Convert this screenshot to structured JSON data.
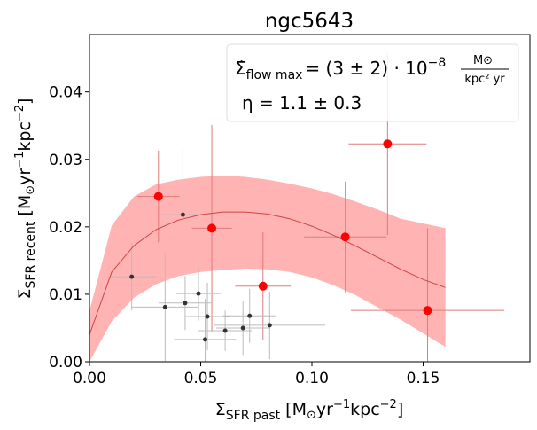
{
  "chart_data": {
    "type": "scatter",
    "title": "ngc5643",
    "xlabel": "Σ_SFR past [M⊙yr⁻¹kpc⁻²]",
    "ylabel": "Σ_SFR recent [M⊙yr⁻¹kpc⁻²]",
    "xlim": [
      0.0,
      0.198
    ],
    "ylim": [
      0.0,
      0.0485
    ],
    "xticks": [
      "0.00",
      "0.05",
      "0.10",
      "0.15"
    ],
    "xtick_values": [
      0.0,
      0.05,
      0.1,
      0.15
    ],
    "yticks": [
      "0.00",
      "0.01",
      "0.02",
      "0.03",
      "0.04"
    ],
    "ytick_values": [
      0.0,
      0.01,
      0.02,
      0.03,
      0.04
    ],
    "annotation": {
      "flow_prefix": "Σ̇",
      "flow_sub": "flow max",
      "flow_value": "= (3 ± 2) · 10",
      "flow_exp": "−8",
      "flow_unit_num": "M⊙",
      "flow_unit_den": "kpc² yr",
      "eta": "η = 1.1 ± 0.3"
    },
    "series": [
      {
        "name": "model band",
        "kind": "band",
        "color": "#ffb3b3",
        "x": [
          0.0,
          0.01,
          0.02,
          0.03,
          0.04,
          0.05,
          0.06,
          0.07,
          0.08,
          0.09,
          0.1,
          0.11,
          0.12,
          0.13,
          0.14,
          0.15,
          0.16
        ],
        "lower": [
          0.0,
          0.006,
          0.0095,
          0.0115,
          0.0127,
          0.0133,
          0.0136,
          0.0138,
          0.0137,
          0.0133,
          0.0125,
          0.0113,
          0.0098,
          0.008,
          0.0062,
          0.0042,
          0.0022
        ],
        "upper": [
          0.0075,
          0.0202,
          0.0245,
          0.0263,
          0.027,
          0.0274,
          0.0276,
          0.0274,
          0.027,
          0.0264,
          0.0257,
          0.0248,
          0.0237,
          0.0225,
          0.0212,
          0.0205,
          0.0198
        ]
      },
      {
        "name": "model line",
        "kind": "line",
        "color": "#cc4444",
        "x": [
          0.0,
          0.01,
          0.02,
          0.03,
          0.04,
          0.05,
          0.06,
          0.07,
          0.08,
          0.09,
          0.1,
          0.11,
          0.12,
          0.13,
          0.14,
          0.15,
          0.16
        ],
        "y": [
          0.004,
          0.0133,
          0.0172,
          0.0196,
          0.021,
          0.0218,
          0.0222,
          0.0222,
          0.0219,
          0.0212,
          0.0201,
          0.0187,
          0.0171,
          0.0154,
          0.0137,
          0.0122,
          0.011
        ]
      },
      {
        "name": "red points",
        "kind": "points",
        "color": "#ff0000",
        "points": [
          {
            "x": 0.031,
            "y": 0.0245,
            "xerr": 0.0095,
            "yerr": 0.0068
          },
          {
            "x": 0.055,
            "y": 0.0198,
            "xerr": 0.009,
            "yerr": 0.0153
          },
          {
            "x": 0.078,
            "y": 0.0112,
            "xerr": 0.0125,
            "yerr": 0.008
          },
          {
            "x": 0.115,
            "y": 0.0185,
            "xerr": 0.0185,
            "yerr": 0.0082
          },
          {
            "x": 0.134,
            "y": 0.0323,
            "xerr": 0.0175,
            "yerr": 0.0135
          },
          {
            "x": 0.152,
            "y": 0.0076,
            "xerr": 0.0345,
            "yerr": 0.0122
          }
        ]
      },
      {
        "name": "black points",
        "kind": "points",
        "color": "#333333",
        "points": [
          {
            "x": 0.019,
            "y": 0.0126,
            "xerr": 0.011,
            "yerr": 0.005
          },
          {
            "x": 0.034,
            "y": 0.0081,
            "xerr": 0.015,
            "yerr": 0.008
          },
          {
            "x": 0.042,
            "y": 0.0218,
            "xerr": 0.01,
            "yerr": 0.01
          },
          {
            "x": 0.043,
            "y": 0.0087,
            "xerr": 0.012,
            "yerr": 0.004
          },
          {
            "x": 0.049,
            "y": 0.0101,
            "xerr": 0.01,
            "yerr": 0.004
          },
          {
            "x": 0.052,
            "y": 0.0033,
            "xerr": 0.014,
            "yerr": 0.006
          },
          {
            "x": 0.053,
            "y": 0.0067,
            "xerr": 0.01,
            "yerr": 0.005
          },
          {
            "x": 0.061,
            "y": 0.0046,
            "xerr": 0.012,
            "yerr": 0.003
          },
          {
            "x": 0.069,
            "y": 0.005,
            "xerr": 0.012,
            "yerr": 0.004
          },
          {
            "x": 0.072,
            "y": 0.0068,
            "xerr": 0.012,
            "yerr": 0.004
          },
          {
            "x": 0.081,
            "y": 0.0054,
            "xerr": 0.025,
            "yerr": 0.005
          }
        ]
      }
    ]
  }
}
